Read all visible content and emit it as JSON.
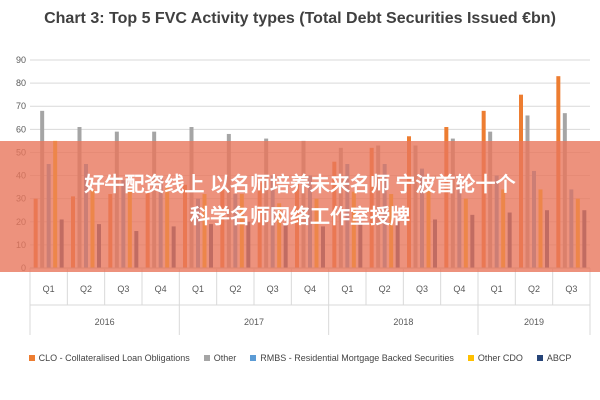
{
  "chart_data": {
    "type": "bar",
    "title": "Chart 3: Top 5 FVC Activity types (Total Debt Securities Issued €bn)",
    "ylim": [
      0,
      90
    ],
    "yticks": [
      0,
      10,
      20,
      30,
      40,
      50,
      60,
      70,
      80,
      90
    ],
    "grid": true,
    "legend_position": "bottom",
    "categories": [
      "Q1",
      "Q2",
      "Q3",
      "Q4",
      "Q1",
      "Q2",
      "Q3",
      "Q4",
      "Q1",
      "Q2",
      "Q3",
      "Q4",
      "Q1",
      "Q2",
      "Q3"
    ],
    "years": [
      {
        "label": "2016",
        "count": 4
      },
      {
        "label": "2017",
        "count": 4
      },
      {
        "label": "2018",
        "count": 4
      },
      {
        "label": "2019",
        "count": 3
      }
    ],
    "series": [
      {
        "name": "CLO - Collateralised Loan Obligations",
        "color": "#ED7D31",
        "values": [
          30,
          31,
          32,
          33,
          36,
          34,
          37,
          40,
          46,
          52,
          57,
          61,
          68,
          75,
          83
        ]
      },
      {
        "name": "Other",
        "color": "#A5A5A5",
        "values": [
          68,
          61,
          59,
          59,
          61,
          58,
          56,
          55,
          52,
          53,
          53,
          56,
          59,
          66,
          67
        ]
      },
      {
        "name": "RMBS - Residential Mortgage Backed Securities",
        "color": "#5B9BD5",
        "values": [
          45,
          45,
          38,
          40,
          30,
          32,
          40,
          40,
          45,
          45,
          43,
          40,
          40,
          42,
          34
        ]
      },
      {
        "name": "Other CDO",
        "color": "#FFC000",
        "values": [
          55,
          34,
          34,
          35,
          32,
          32,
          28,
          30,
          33,
          32,
          34,
          30,
          34,
          34,
          30
        ]
      },
      {
        "name": "ABCP",
        "color": "#264478",
        "values": [
          21,
          19,
          16,
          18,
          19,
          20,
          19,
          18,
          20,
          20,
          21,
          23,
          24,
          25,
          25
        ]
      }
    ]
  },
  "overlay": {
    "line1": "好牛配资线上 以名师培养未来名师 宁波首轮十个",
    "line2": "科学名师网络工作室授牌"
  }
}
